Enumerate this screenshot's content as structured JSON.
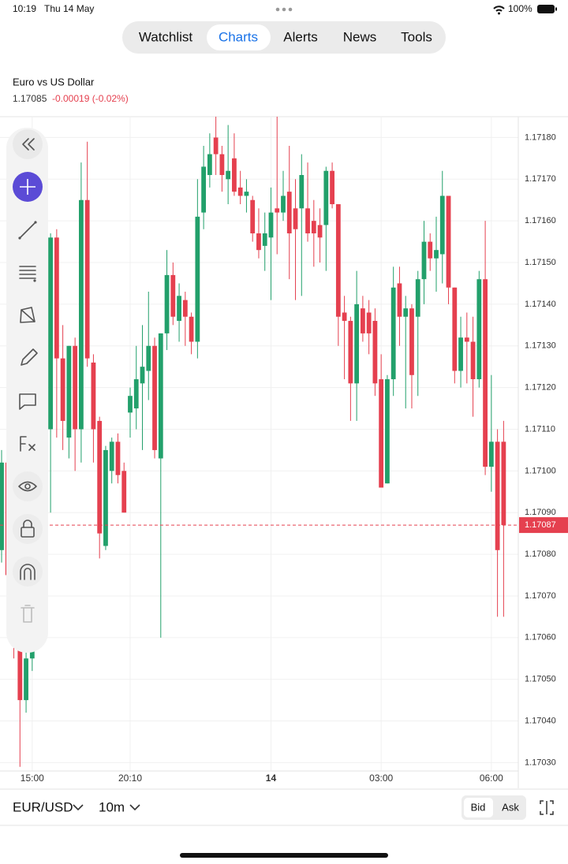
{
  "status_bar": {
    "time": "10:19",
    "date": "Thu 14 May",
    "battery": "100%"
  },
  "tabs": [
    "Watchlist",
    "Charts",
    "Alerts",
    "News",
    "Tools"
  ],
  "instrument": {
    "name": "Euro vs US Dollar",
    "price": "1.17085",
    "change": "-0.00019 (-0.02%)"
  },
  "chart_data": {
    "type": "candlestick",
    "up_color": "#22a06b",
    "down_color": "#e5404f",
    "grid": true,
    "open": [
      1.17081,
      1.17102,
      1.17075,
      1.17058,
      1.17045,
      1.17055,
      1.1708,
      1.17095,
      1.1711,
      1.17156,
      1.17127,
      1.17108,
      1.1713,
      1.1711,
      1.17165,
      1.17126,
      1.17112,
      1.17082,
      1.171,
      1.17107,
      1.171,
      1.17114,
      1.17115,
      1.17121,
      1.17124,
      1.1713,
      1.17103,
      1.17133,
      1.17147,
      1.17136,
      1.17141,
      1.17137,
      1.17131,
      1.17162,
      1.17171,
      1.1718,
      1.17176,
      1.1717,
      1.17175,
      1.17168,
      1.17166,
      1.17165,
      1.17157,
      1.17154,
      1.17156,
      1.17163,
      1.17162,
      1.17167,
      1.17163,
      1.17163,
      1.17163,
      1.1716,
      1.17159,
      1.17159,
      1.17172,
      1.17164,
      1.17138,
      1.17136,
      1.17121,
      1.17139,
      1.17138,
      1.17136,
      1.17122,
      1.17097,
      1.17122,
      1.17145,
      1.17137,
      1.17139,
      1.17137,
      1.17146,
      1.17155,
      1.17151,
      1.17152,
      1.17166,
      1.17144,
      1.17124,
      1.17132,
      1.17131,
      1.17122,
      1.17146,
      1.17101,
      1.17107,
      1.17107
    ],
    "high": [
      1.17105,
      1.17108,
      1.1708,
      1.17062,
      1.17058,
      1.17085,
      1.171,
      1.17115,
      1.17157,
      1.17158,
      1.17135,
      1.1713,
      1.17132,
      1.17174,
      1.17179,
      1.17128,
      1.17113,
      1.17106,
      1.17108,
      1.17109,
      1.17102,
      1.1712,
      1.1713,
      1.17135,
      1.17143,
      1.17132,
      1.17133,
      1.17153,
      1.1715,
      1.17145,
      1.17143,
      1.17138,
      1.1717,
      1.17178,
      1.17181,
      1.17185,
      1.17178,
      1.17183,
      1.17181,
      1.17172,
      1.1717,
      1.17166,
      1.17163,
      1.17162,
      1.17168,
      1.17185,
      1.17172,
      1.17178,
      1.1717,
      1.17176,
      1.17174,
      1.17165,
      1.17163,
      1.17173,
      1.17174,
      1.17164,
      1.17142,
      1.17137,
      1.17148,
      1.17142,
      1.17141,
      1.17139,
      1.17128,
      1.17123,
      1.17149,
      1.17149,
      1.17142,
      1.1714,
      1.17148,
      1.1716,
      1.17157,
      1.17161,
      1.17172,
      1.17166,
      1.17144,
      1.17137,
      1.17138,
      1.17137,
      1.17148,
      1.1716,
      1.17123,
      1.1711,
      1.17112
    ],
    "low": [
      1.17078,
      1.1707,
      1.17055,
      1.17029,
      1.17042,
      1.17052,
      1.17075,
      1.17088,
      1.1709,
      1.17108,
      1.17105,
      1.17103,
      1.171,
      1.17102,
      1.17125,
      1.17102,
      1.17079,
      1.17081,
      1.17097,
      1.17097,
      1.1709,
      1.17108,
      1.1711,
      1.17105,
      1.17117,
      1.17103,
      1.1706,
      1.17129,
      1.17135,
      1.17131,
      1.1713,
      1.17128,
      1.17127,
      1.17158,
      1.17168,
      1.17171,
      1.17167,
      1.17164,
      1.17166,
      1.17164,
      1.17162,
      1.17155,
      1.17151,
      1.17148,
      1.17141,
      1.17152,
      1.1716,
      1.17146,
      1.17141,
      1.17142,
      1.17155,
      1.17149,
      1.1715,
      1.17148,
      1.17163,
      1.1713,
      1.17122,
      1.17112,
      1.17112,
      1.17131,
      1.17128,
      1.17118,
      1.17096,
      1.17097,
      1.17118,
      1.1713,
      1.17115,
      1.17115,
      1.17118,
      1.1714,
      1.17148,
      1.17143,
      1.17145,
      1.1714,
      1.17121,
      1.1712,
      1.17121,
      1.17113,
      1.1712,
      1.17099,
      1.17095,
      1.17065,
      1.17065
    ],
    "close": [
      1.17102,
      1.17075,
      1.17058,
      1.17045,
      1.17055,
      1.1708,
      1.17095,
      1.1711,
      1.17156,
      1.17127,
      1.17112,
      1.1713,
      1.1711,
      1.17165,
      1.17127,
      1.1711,
      1.17085,
      1.17105,
      1.17107,
      1.17099,
      1.1709,
      1.17118,
      1.17122,
      1.17125,
      1.1713,
      1.17105,
      1.17133,
      1.17147,
      1.17137,
      1.17142,
      1.17137,
      1.17131,
      1.17161,
      1.17173,
      1.17176,
      1.17176,
      1.17171,
      1.17172,
      1.17167,
      1.17166,
      1.17167,
      1.17157,
      1.17153,
      1.17157,
      1.17162,
      1.17162,
      1.17166,
      1.17157,
      1.17158,
      1.17171,
      1.17157,
      1.17157,
      1.17156,
      1.17172,
      1.17164,
      1.17137,
      1.17136,
      1.17121,
      1.1714,
      1.17133,
      1.17133,
      1.17121,
      1.17096,
      1.17122,
      1.17144,
      1.17137,
      1.17139,
      1.17123,
      1.17146,
      1.17155,
      1.17151,
      1.17153,
      1.17166,
      1.17144,
      1.17124,
      1.17132,
      1.17131,
      1.17122,
      1.17146,
      1.17101,
      1.17107,
      1.17081,
      1.17087
    ],
    "last_price": 1.17087,
    "xlim": [
      -0.26,
      84.4
    ],
    "xticks": [
      {
        "value": 5,
        "label": "15:00"
      },
      {
        "value": 21,
        "label": "20:10"
      },
      {
        "value": 44,
        "label": "14"
      },
      {
        "value": 62,
        "label": "03:00"
      },
      {
        "value": 80,
        "label": "06:00"
      }
    ],
    "ylim": [
      1.17028,
      1.17185
    ],
    "yticks": [
      {
        "value": 1.1703,
        "label": "1.17030"
      },
      {
        "value": 1.1704,
        "label": "1.17040"
      },
      {
        "value": 1.1705,
        "label": "1.17050"
      },
      {
        "value": 1.1706,
        "label": "1.17060"
      },
      {
        "value": 1.1707,
        "label": "1.17070"
      },
      {
        "value": 1.1708,
        "label": "1.17080"
      },
      {
        "value": 1.1709,
        "label": "1.17090"
      },
      {
        "value": 1.171,
        "label": "1.17100"
      },
      {
        "value": 1.1711,
        "label": "1.17110"
      },
      {
        "value": 1.1712,
        "label": "1.17120"
      },
      {
        "value": 1.1713,
        "label": "1.17130"
      },
      {
        "value": 1.1714,
        "label": "1.17140"
      },
      {
        "value": 1.1715,
        "label": "1.17150"
      },
      {
        "value": 1.1716,
        "label": "1.17160"
      },
      {
        "value": 1.1717,
        "label": "1.17170"
      },
      {
        "value": 1.1718,
        "label": "1.17180"
      }
    ]
  },
  "footer": {
    "symbol": "EUR/USD",
    "interval": "10m",
    "price_sides": [
      "Bid",
      "Ask"
    ]
  }
}
